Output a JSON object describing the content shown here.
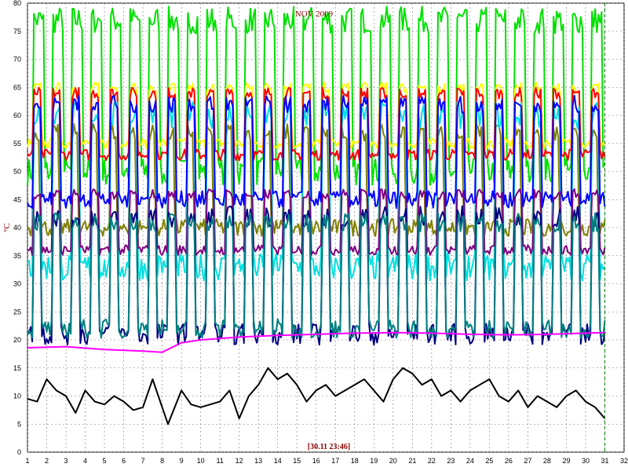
{
  "chart_data": {
    "type": "line",
    "title": "NOV 2009",
    "ylabel": "°C",
    "timestamp": "[30.11 23:46]",
    "xlim": [
      1,
      32
    ],
    "ylim": [
      0,
      80
    ],
    "x_ticks": [
      1,
      2,
      3,
      4,
      5,
      6,
      7,
      8,
      9,
      10,
      11,
      12,
      13,
      14,
      15,
      16,
      17,
      18,
      19,
      20,
      21,
      22,
      23,
      24,
      25,
      26,
      27,
      28,
      29,
      30,
      31,
      32
    ],
    "y_ticks": [
      0,
      5,
      10,
      15,
      20,
      25,
      30,
      35,
      40,
      45,
      50,
      55,
      60,
      65,
      70,
      75,
      80
    ],
    "grid": true,
    "data_end_day": 31,
    "series": [
      {
        "color": "#00e000",
        "kind": "cycle",
        "low": 50,
        "high": 77,
        "duty": 0.62
      },
      {
        "color": "#ffff00",
        "kind": "cycle",
        "low": 55,
        "high": 65,
        "duty": 0.45
      },
      {
        "color": "#ff0000",
        "kind": "cycle",
        "low": 53,
        "high": 64,
        "duty": 0.45
      },
      {
        "color": "#808000",
        "kind": "cycle",
        "low": 40,
        "high": 57,
        "duty": 0.4
      },
      {
        "color": "#00e0e0",
        "kind": "cycle",
        "low": 33,
        "high": 60,
        "duty": 0.45
      },
      {
        "color": "#800080",
        "kind": "cycle",
        "low": 36,
        "high": 46,
        "duty": 0.5
      },
      {
        "color": "#0000ff",
        "kind": "cycle",
        "low": 45,
        "high": 62,
        "duty": 0.45
      },
      {
        "color": "#000080",
        "kind": "cycle",
        "low": 21,
        "high": 42,
        "duty": 0.45
      },
      {
        "color": "#008080",
        "kind": "cycle",
        "low": 22,
        "high": 41,
        "duty": 0.45
      },
      {
        "color": "#ff00ff",
        "kind": "points",
        "values": [
          [
            1,
            18.6
          ],
          [
            3,
            18.8
          ],
          [
            5,
            18.3
          ],
          [
            7,
            18.0
          ],
          [
            8,
            17.8
          ],
          [
            9,
            19.5
          ],
          [
            10,
            20.0
          ],
          [
            12,
            20.5
          ],
          [
            14,
            20.8
          ],
          [
            16,
            21.0
          ],
          [
            18,
            21.2
          ],
          [
            20,
            21.3
          ],
          [
            22,
            21.2
          ],
          [
            24,
            21.0
          ],
          [
            26,
            20.9
          ],
          [
            28,
            21.0
          ],
          [
            30,
            21.2
          ],
          [
            31,
            21.3
          ]
        ]
      },
      {
        "color": "#000000",
        "kind": "points",
        "values": [
          [
            1,
            9.5
          ],
          [
            1.5,
            9.0
          ],
          [
            2,
            13
          ],
          [
            2.5,
            11
          ],
          [
            3,
            10
          ],
          [
            3.5,
            7
          ],
          [
            4,
            11
          ],
          [
            4.5,
            9
          ],
          [
            5,
            8.5
          ],
          [
            5.5,
            10
          ],
          [
            6,
            9
          ],
          [
            6.5,
            7.5
          ],
          [
            7,
            8
          ],
          [
            7.5,
            13
          ],
          [
            8,
            8
          ],
          [
            8.3,
            5
          ],
          [
            9,
            11
          ],
          [
            9.5,
            8.5
          ],
          [
            10,
            8
          ],
          [
            11,
            9
          ],
          [
            11.5,
            11
          ],
          [
            12,
            6
          ],
          [
            12.5,
            10
          ],
          [
            13,
            12
          ],
          [
            13.5,
            15
          ],
          [
            14,
            13
          ],
          [
            14.5,
            14
          ],
          [
            15,
            12
          ],
          [
            15.5,
            9
          ],
          [
            16,
            11
          ],
          [
            16.5,
            12
          ],
          [
            17,
            10
          ],
          [
            18,
            12
          ],
          [
            18.5,
            13
          ],
          [
            19,
            11
          ],
          [
            19.5,
            9
          ],
          [
            20,
            13
          ],
          [
            20.5,
            15
          ],
          [
            21,
            14
          ],
          [
            21.5,
            12
          ],
          [
            22,
            13
          ],
          [
            22.5,
            10
          ],
          [
            23,
            11
          ],
          [
            23.5,
            9
          ],
          [
            24,
            11
          ],
          [
            24.5,
            12
          ],
          [
            25,
            13
          ],
          [
            25.5,
            10
          ],
          [
            26,
            9
          ],
          [
            26.5,
            11
          ],
          [
            27,
            8
          ],
          [
            27.5,
            10
          ],
          [
            28,
            9
          ],
          [
            28.5,
            8
          ],
          [
            29,
            10
          ],
          [
            29.5,
            11
          ],
          [
            30,
            9
          ],
          [
            30.5,
            8
          ],
          [
            31,
            6
          ]
        ]
      }
    ]
  }
}
